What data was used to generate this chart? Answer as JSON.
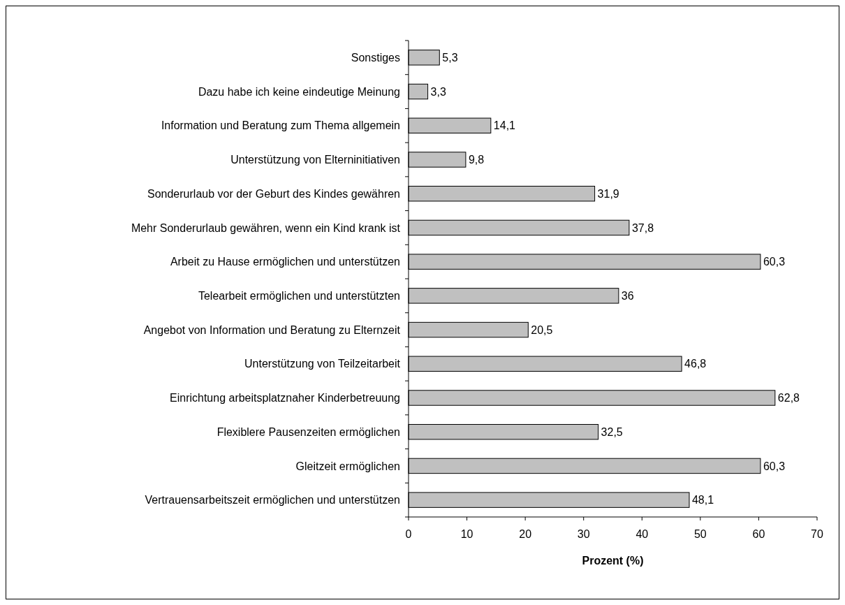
{
  "chart_data": {
    "type": "bar",
    "orientation": "horizontal",
    "xlabel": "Prozent (%)",
    "categories": [
      "Sonstiges",
      "Dazu habe ich keine eindeutige Meinung",
      "Information und Beratung zum Thema allgemein",
      "Unterstützung von Elterninitiativen",
      "Sonderurlaub vor der Geburt des Kindes gewähren",
      "Mehr Sonderurlaub gewähren, wenn ein Kind krank ist",
      "Arbeit zu Hause ermöglichen und unterstützen",
      "Telearbeit ermöglichen und unterstützten",
      "Angebot von Information und Beratung zu Elternzeit",
      "Unterstützung von Teilzeitarbeit",
      "Einrichtung arbeitsplatznaher Kinderbetreuung",
      "Flexiblere Pausenzeiten ermöglichen",
      "Gleitzeit ermöglichen",
      "Vertrauensarbeitszeit ermöglichen und unterstützen"
    ],
    "values": [
      5.3,
      3.3,
      14.1,
      9.8,
      31.9,
      37.8,
      60.3,
      36,
      20.5,
      46.8,
      62.8,
      32.5,
      60.3,
      48.1
    ],
    "value_labels": [
      "5,3",
      "3,3",
      "14,1",
      "9,8",
      "31,9",
      "37,8",
      "60,3",
      "36",
      "20,5",
      "46,8",
      "62,8",
      "32,5",
      "60,3",
      "48,1"
    ],
    "color": "#c0c0c0",
    "xlim": [
      0,
      70
    ],
    "xticks": [
      0,
      10,
      20,
      30,
      40,
      50,
      60,
      70
    ],
    "grid": false
  }
}
